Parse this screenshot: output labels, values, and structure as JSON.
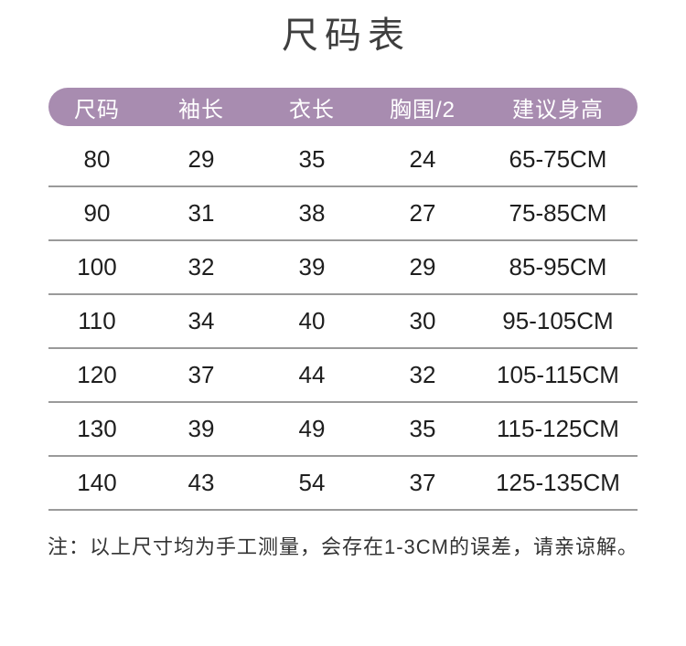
{
  "page": {
    "title": "尺码表",
    "note": "注：以上尺寸均为手工测量，会存在1-3CM的误差，请亲谅解。"
  },
  "colors": {
    "background": "#ffffff",
    "header_bg": "#a88cb0",
    "header_text": "#ffffff",
    "title_text": "#3e3e3e",
    "cell_text": "#1e1e1e",
    "divider": "#9a9a9a",
    "note_text": "#333333"
  },
  "chart_data": {
    "type": "table",
    "title": "尺码表",
    "columns": [
      "尺码",
      "袖长",
      "衣长",
      "胸围/2",
      "建议身高"
    ],
    "rows": [
      [
        "80",
        "29",
        "35",
        "24",
        "65-75CM"
      ],
      [
        "90",
        "31",
        "38",
        "27",
        "75-85CM"
      ],
      [
        "100",
        "32",
        "39",
        "29",
        "85-95CM"
      ],
      [
        "110",
        "34",
        "40",
        "30",
        "95-105CM"
      ],
      [
        "120",
        "37",
        "44",
        "32",
        "105-115CM"
      ],
      [
        "130",
        "39",
        "49",
        "35",
        "115-125CM"
      ],
      [
        "140",
        "43",
        "54",
        "37",
        "125-135CM"
      ]
    ],
    "note": "注：以上尺寸均为手工测量，会存在1-3CM的误差，请亲谅解。",
    "layout": {
      "header_shape": "rounded-pill",
      "row_dividers": true,
      "grid": "horizontal-rules-only"
    }
  }
}
